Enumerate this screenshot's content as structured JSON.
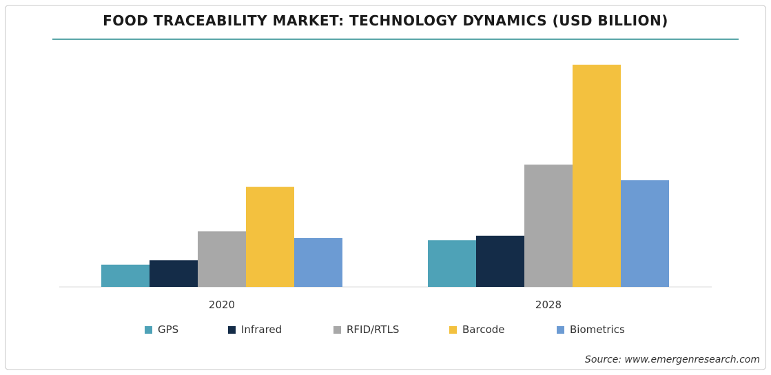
{
  "title": "FOOD TRACEABILITY MARKET: TECHNOLOGY DYNAMICS (USD BILLION)",
  "source": "Source: www.emergenresearch.com",
  "chart_data": {
    "type": "bar",
    "title": "FOOD TRACEABILITY MARKET: TECHNOLOGY DYNAMICS (USD BILLION)",
    "xlabel": "",
    "ylabel": "",
    "categories": [
      "2020",
      "2028"
    ],
    "series": [
      {
        "name": "GPS",
        "color": "#4ea2b7",
        "values": [
          1.0,
          2.1
        ]
      },
      {
        "name": "Infrared",
        "color": "#142c48",
        "values": [
          1.2,
          2.3
        ]
      },
      {
        "name": "RFID/RTLS",
        "color": "#a8a8a8",
        "values": [
          2.5,
          5.5
        ]
      },
      {
        "name": "Barcode",
        "color": "#f3c13f",
        "values": [
          4.5,
          10.0
        ]
      },
      {
        "name": "Biometrics",
        "color": "#6c9bd3",
        "values": [
          2.2,
          4.8
        ]
      }
    ],
    "ylim": [
      0,
      10
    ],
    "grid": false,
    "legend_position": "bottom"
  }
}
